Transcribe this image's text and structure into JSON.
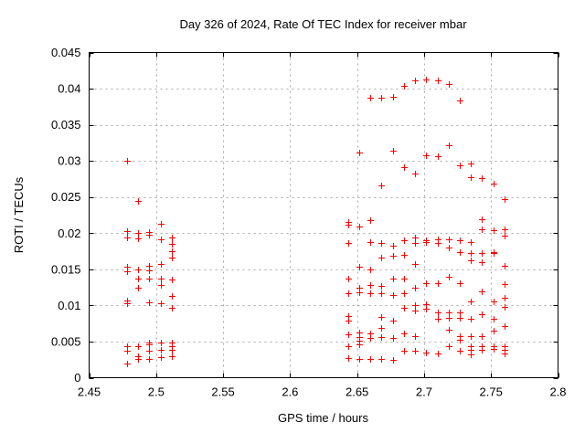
{
  "figure": {
    "title": "Day 326 of 2024, Rate Of TEC Index for receiver mbar",
    "xlabel": "GPS time / hours",
    "ylabel": "ROTI / TECUs"
  },
  "chart_data": {
    "type": "scatter",
    "title": "Day 326 of 2024, Rate Of TEC Index for receiver mbar",
    "xlabel": "GPS time / hours",
    "ylabel": "ROTI / TECUs",
    "xlim": [
      2.45,
      2.8
    ],
    "ylim": [
      0,
      0.045
    ],
    "xticks": [
      2.45,
      2.5,
      2.55,
      2.6,
      2.65,
      2.7,
      2.75,
      2.8
    ],
    "xtick_labels": [
      "2.45",
      "2.5",
      "2.55",
      "2.6",
      "2.65",
      "2.7",
      "2.75",
      "2.8"
    ],
    "yticks": [
      0,
      0.005,
      0.01,
      0.015,
      0.02,
      0.025,
      0.03,
      0.035,
      0.04,
      0.045
    ],
    "ytick_labels": [
      "0",
      "0.005",
      "0.01",
      "0.015",
      "0.02",
      "0.025",
      "0.03",
      "0.035",
      "0.04",
      "0.045"
    ],
    "grid": true,
    "legend_position": "none",
    "marker": "plus",
    "marker_color": "#ff0000",
    "grid_color": "#a8a8a8",
    "axis_color": "#000000",
    "series": [
      {
        "name": "ROTI",
        "points": [
          [
            2.4783,
            0.03
          ],
          [
            2.4783,
            0.0203
          ],
          [
            2.4783,
            0.0194
          ],
          [
            2.4783,
            0.0153
          ],
          [
            2.4783,
            0.0147
          ],
          [
            2.4783,
            0.0107
          ],
          [
            2.4783,
            0.0103
          ],
          [
            2.4783,
            0.0044
          ],
          [
            2.4783,
            0.0037
          ],
          [
            2.4783,
            0.002
          ],
          [
            2.4867,
            0.0244
          ],
          [
            2.4867,
            0.02
          ],
          [
            2.4867,
            0.0193
          ],
          [
            2.4867,
            0.015
          ],
          [
            2.4867,
            0.0137
          ],
          [
            2.4867,
            0.0124
          ],
          [
            2.4867,
            0.0044
          ],
          [
            2.4867,
            0.003
          ],
          [
            2.4867,
            0.0026
          ],
          [
            2.495,
            0.0202
          ],
          [
            2.495,
            0.0198
          ],
          [
            2.495,
            0.0155
          ],
          [
            2.495,
            0.0148
          ],
          [
            2.495,
            0.0137
          ],
          [
            2.495,
            0.0104
          ],
          [
            2.495,
            0.0049
          ],
          [
            2.495,
            0.0046
          ],
          [
            2.495,
            0.0037
          ],
          [
            2.495,
            0.0026
          ],
          [
            2.5033,
            0.0213
          ],
          [
            2.5033,
            0.0192
          ],
          [
            2.5033,
            0.0157
          ],
          [
            2.5033,
            0.0137
          ],
          [
            2.5033,
            0.0128
          ],
          [
            2.5033,
            0.0103
          ],
          [
            2.5033,
            0.0049
          ],
          [
            2.5033,
            0.0039
          ],
          [
            2.5033,
            0.0028
          ],
          [
            2.5117,
            0.0194
          ],
          [
            2.5117,
            0.0185
          ],
          [
            2.5117,
            0.0175
          ],
          [
            2.5117,
            0.0166
          ],
          [
            2.5117,
            0.0136
          ],
          [
            2.5117,
            0.0113
          ],
          [
            2.5117,
            0.0097
          ],
          [
            2.5117,
            0.0049
          ],
          [
            2.5117,
            0.0044
          ],
          [
            2.5117,
            0.0038
          ],
          [
            2.5117,
            0.003
          ],
          [
            2.6433,
            0.0216
          ],
          [
            2.6433,
            0.0212
          ],
          [
            2.6433,
            0.0186
          ],
          [
            2.6433,
            0.0137
          ],
          [
            2.6433,
            0.0117
          ],
          [
            2.6433,
            0.0085
          ],
          [
            2.6433,
            0.0079
          ],
          [
            2.6433,
            0.006
          ],
          [
            2.6433,
            0.0043
          ],
          [
            2.6433,
            0.0027
          ],
          [
            2.6517,
            0.0312
          ],
          [
            2.6517,
            0.0209
          ],
          [
            2.6517,
            0.0153
          ],
          [
            2.6517,
            0.0125
          ],
          [
            2.6517,
            0.0118
          ],
          [
            2.6517,
            0.0062
          ],
          [
            2.6517,
            0.0056
          ],
          [
            2.6517,
            0.0051
          ],
          [
            2.6517,
            0.0046
          ],
          [
            2.6517,
            0.0026
          ],
          [
            2.66,
            0.0387
          ],
          [
            2.66,
            0.0218
          ],
          [
            2.66,
            0.0188
          ],
          [
            2.66,
            0.015
          ],
          [
            2.66,
            0.0128
          ],
          [
            2.66,
            0.0117
          ],
          [
            2.66,
            0.0061
          ],
          [
            2.66,
            0.0055
          ],
          [
            2.66,
            0.0026
          ],
          [
            2.6683,
            0.0387
          ],
          [
            2.6683,
            0.0266
          ],
          [
            2.6683,
            0.0187
          ],
          [
            2.6683,
            0.0166
          ],
          [
            2.6683,
            0.0127
          ],
          [
            2.6683,
            0.0117
          ],
          [
            2.6683,
            0.0084
          ],
          [
            2.6683,
            0.0069
          ],
          [
            2.6683,
            0.0056
          ],
          [
            2.6683,
            0.0026
          ],
          [
            2.6767,
            0.0389
          ],
          [
            2.6767,
            0.0314
          ],
          [
            2.6767,
            0.0183
          ],
          [
            2.6767,
            0.0169
          ],
          [
            2.6767,
            0.0137
          ],
          [
            2.6767,
            0.0115
          ],
          [
            2.6767,
            0.0079
          ],
          [
            2.6767,
            0.0055
          ],
          [
            2.6767,
            0.0025
          ],
          [
            2.685,
            0.0404
          ],
          [
            2.685,
            0.0291
          ],
          [
            2.685,
            0.019
          ],
          [
            2.685,
            0.017
          ],
          [
            2.685,
            0.0137
          ],
          [
            2.685,
            0.0117
          ],
          [
            2.685,
            0.0097
          ],
          [
            2.685,
            0.0061
          ],
          [
            2.685,
            0.0037
          ],
          [
            2.6933,
            0.0412
          ],
          [
            2.6933,
            0.0283
          ],
          [
            2.6933,
            0.0194
          ],
          [
            2.6933,
            0.0187
          ],
          [
            2.6933,
            0.0158
          ],
          [
            2.6933,
            0.0125
          ],
          [
            2.6933,
            0.01
          ],
          [
            2.6933,
            0.0093
          ],
          [
            2.6933,
            0.0058
          ],
          [
            2.6933,
            0.0037
          ],
          [
            2.7017,
            0.0413
          ],
          [
            2.7017,
            0.0308
          ],
          [
            2.7017,
            0.019
          ],
          [
            2.7017,
            0.0188
          ],
          [
            2.7017,
            0.0131
          ],
          [
            2.7017,
            0.0102
          ],
          [
            2.7017,
            0.0096
          ],
          [
            2.7017,
            0.0035
          ],
          [
            2.71,
            0.0412
          ],
          [
            2.71,
            0.0307
          ],
          [
            2.71,
            0.0191
          ],
          [
            2.71,
            0.0186
          ],
          [
            2.71,
            0.0131
          ],
          [
            2.71,
            0.009
          ],
          [
            2.71,
            0.0082
          ],
          [
            2.71,
            0.0034
          ],
          [
            2.7183,
            0.0407
          ],
          [
            2.7183,
            0.0322
          ],
          [
            2.7183,
            0.0191
          ],
          [
            2.7183,
            0.018
          ],
          [
            2.7183,
            0.014
          ],
          [
            2.7183,
            0.009
          ],
          [
            2.7183,
            0.0083
          ],
          [
            2.7183,
            0.0066
          ],
          [
            2.7183,
            0.0043
          ],
          [
            2.7267,
            0.0384
          ],
          [
            2.7267,
            0.0294
          ],
          [
            2.7267,
            0.019
          ],
          [
            2.7267,
            0.0174
          ],
          [
            2.7267,
            0.0131
          ],
          [
            2.7267,
            0.009
          ],
          [
            2.7267,
            0.0083
          ],
          [
            2.7267,
            0.0058
          ],
          [
            2.7267,
            0.0052
          ],
          [
            2.7267,
            0.0037
          ],
          [
            2.735,
            0.0296
          ],
          [
            2.735,
            0.0277
          ],
          [
            2.735,
            0.0188
          ],
          [
            2.735,
            0.0173
          ],
          [
            2.735,
            0.0162
          ],
          [
            2.735,
            0.0106
          ],
          [
            2.735,
            0.0081
          ],
          [
            2.735,
            0.0058
          ],
          [
            2.735,
            0.0044
          ],
          [
            2.735,
            0.0038
          ],
          [
            2.735,
            0.0032
          ],
          [
            2.7433,
            0.0276
          ],
          [
            2.7433,
            0.0219
          ],
          [
            2.7433,
            0.0206
          ],
          [
            2.7433,
            0.0173
          ],
          [
            2.7433,
            0.016
          ],
          [
            2.7433,
            0.012
          ],
          [
            2.7433,
            0.0088
          ],
          [
            2.7433,
            0.0058
          ],
          [
            2.7433,
            0.0043
          ],
          [
            2.7433,
            0.0038
          ],
          [
            2.7517,
            0.0268
          ],
          [
            2.7517,
            0.0204
          ],
          [
            2.7517,
            0.0174
          ],
          [
            2.7517,
            0.0172
          ],
          [
            2.7517,
            0.0106
          ],
          [
            2.7517,
            0.0082
          ],
          [
            2.7517,
            0.0065
          ],
          [
            2.7517,
            0.0043
          ],
          [
            2.7517,
            0.004
          ],
          [
            2.76,
            0.0247
          ],
          [
            2.76,
            0.0205
          ],
          [
            2.76,
            0.0196
          ],
          [
            2.76,
            0.0155
          ],
          [
            2.76,
            0.013
          ],
          [
            2.76,
            0.011
          ],
          [
            2.76,
            0.0098
          ],
          [
            2.76,
            0.0072
          ],
          [
            2.76,
            0.0044
          ],
          [
            2.76,
            0.0038
          ],
          [
            2.76,
            0.0034
          ]
        ]
      }
    ]
  }
}
